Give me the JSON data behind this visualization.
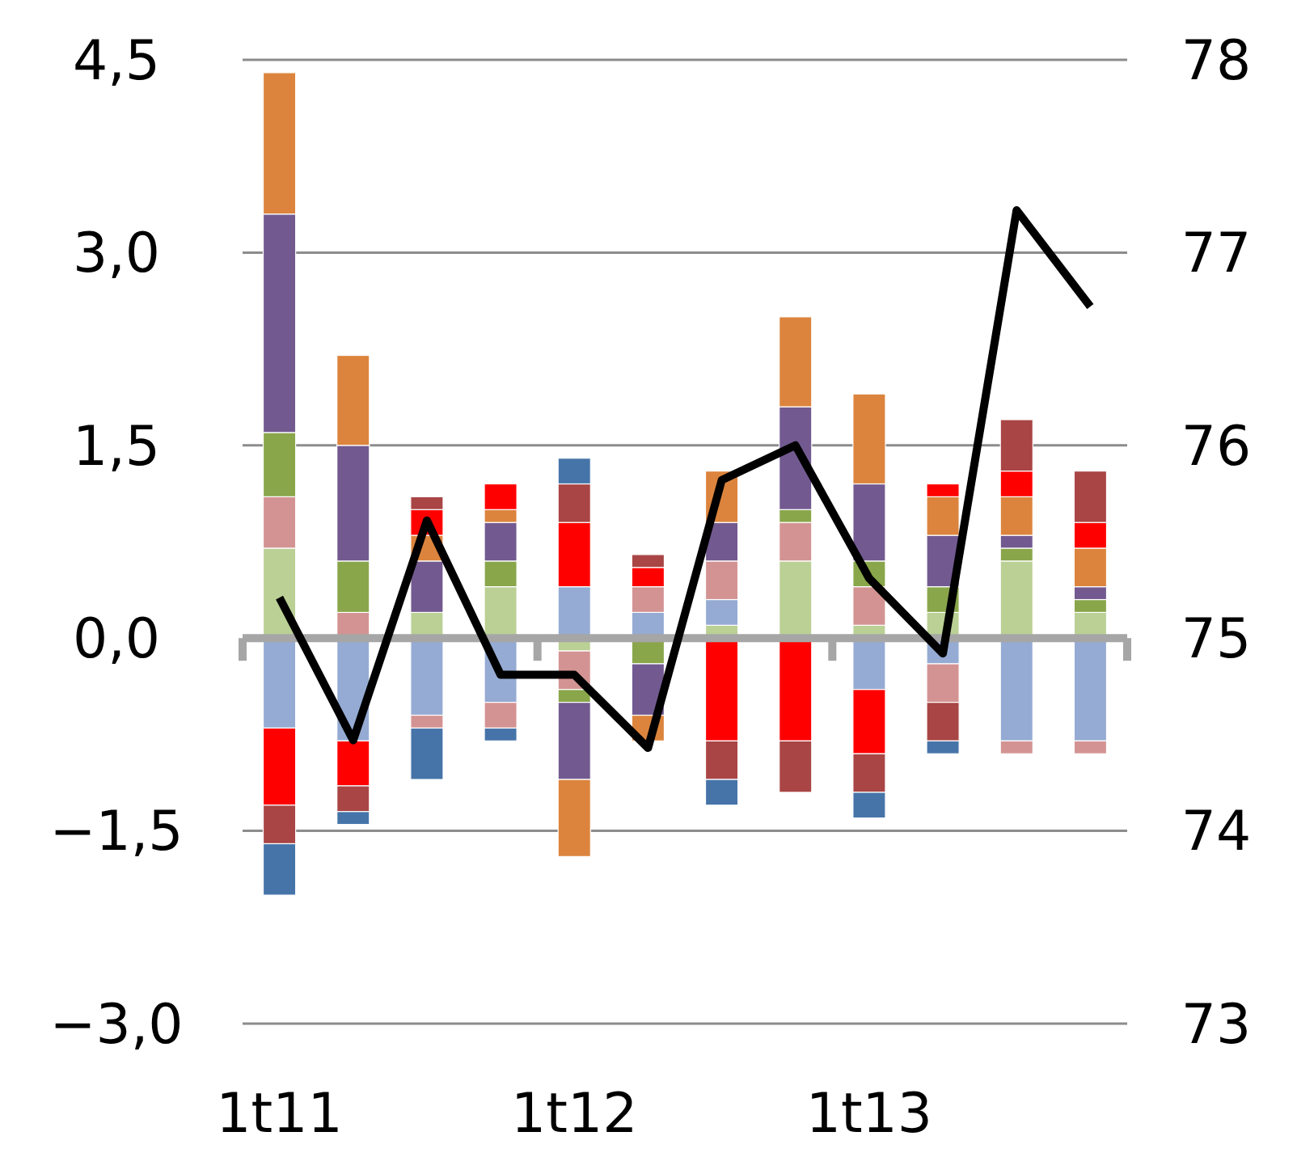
{
  "chart_data": {
    "type": "bar",
    "stacked": true,
    "categories": [
      "1t11",
      null,
      null,
      null,
      "1t12",
      null,
      null,
      null,
      "1t13",
      null,
      null,
      null
    ],
    "ylim": [
      -3,
      4.5
    ],
    "yticks": [
      {
        "value": -3,
        "label": "−3,0"
      },
      {
        "value": -1.5,
        "label": "−1,5"
      },
      {
        "value": 0,
        "label": "0,0"
      },
      {
        "value": 1.5,
        "label": "1,5"
      },
      {
        "value": 3,
        "label": "3,0"
      },
      {
        "value": 4.5,
        "label": "4,5"
      }
    ],
    "y2lim": [
      73,
      78
    ],
    "y2ticks": [
      73,
      74,
      75,
      76,
      77,
      78
    ],
    "grid": "y",
    "series": [
      {
        "color": "#bad095",
        "values": [
          0.7,
          null,
          0.2,
          0.4,
          -0.1,
          null,
          0.1,
          0.6,
          0.1,
          0.2,
          0.6,
          0.2
        ]
      },
      {
        "color": "#95abd3",
        "values": [
          -0.7,
          -0.8,
          -0.6,
          -0.5,
          0.4,
          0.2,
          0.2,
          null,
          -0.4,
          -0.2,
          -0.8,
          -0.8
        ]
      },
      {
        "color": "#d49393",
        "values": [
          0.4,
          0.2,
          -0.1,
          -0.2,
          -0.3,
          0.2,
          0.3,
          0.3,
          0.3,
          -0.3,
          -0.1,
          -0.1
        ]
      },
      {
        "color": "#8aa64b",
        "values": [
          0.5,
          0.4,
          null,
          0.2,
          -0.1,
          -0.2,
          null,
          0.1,
          0.2,
          0.2,
          0.1,
          0.1
        ]
      },
      {
        "color": "#725a90",
        "values": [
          1.7,
          0.9,
          0.4,
          0.3,
          -0.6,
          -0.4,
          0.3,
          0.8,
          0.6,
          0.4,
          0.1,
          0.1
        ]
      },
      {
        "color": "#dc843d",
        "values": [
          1.1,
          0.7,
          0.2,
          0.1,
          -0.6,
          -0.2,
          0.4,
          0.7,
          0.7,
          0.3,
          0.3,
          0.3
        ]
      },
      {
        "color": "#ff0000",
        "values": [
          -0.6,
          -0.35,
          0.2,
          0.2,
          0.5,
          0.15,
          -0.8,
          -0.8,
          -0.5,
          0.1,
          0.2,
          0.2
        ]
      },
      {
        "color": "#a94545",
        "values": [
          -0.3,
          -0.2,
          0.1,
          null,
          0.3,
          0.1,
          -0.3,
          -0.4,
          -0.3,
          -0.3,
          0.4,
          0.4
        ]
      },
      {
        "color": "#4674a9",
        "values": [
          -0.4,
          -0.1,
          -0.4,
          -0.1,
          0.2,
          null,
          -0.2,
          null,
          -0.2,
          -0.1,
          null,
          null
        ]
      },
      {
        "type": "line",
        "axis": "y2",
        "color": "#000000",
        "values": [
          75.21,
          74.47,
          75.61,
          74.81,
          74.81,
          74.43,
          75.82,
          76.0,
          75.31,
          74.92,
          77.22,
          76.72
        ]
      }
    ]
  }
}
